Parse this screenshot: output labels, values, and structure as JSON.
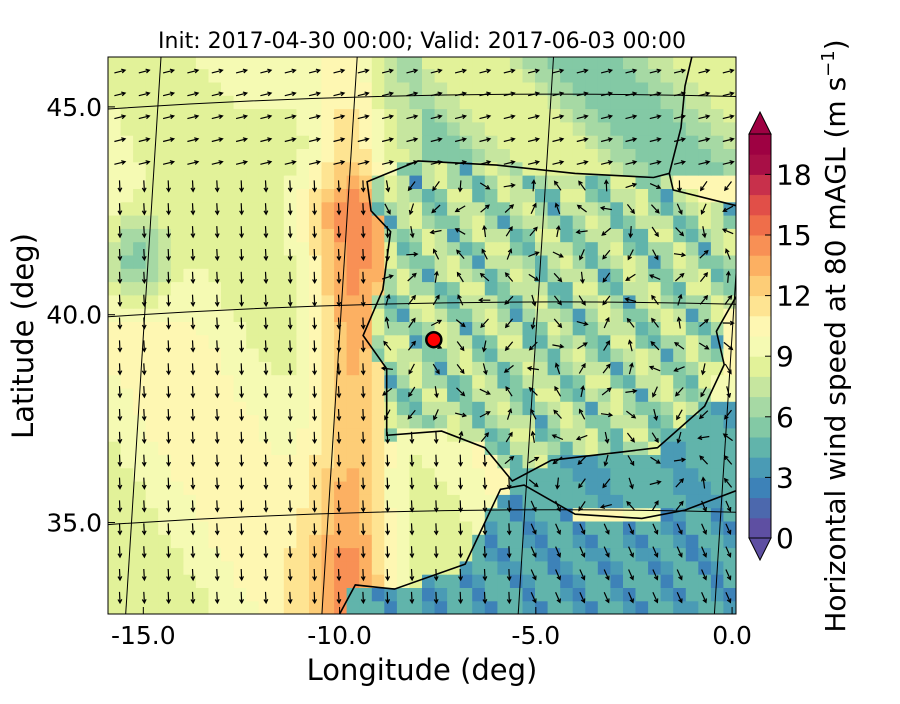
{
  "chart_data": {
    "type": "heatmap",
    "title": "Init: 2017-04-30 00:00; Valid: 2017-06-03 00:00",
    "xlabel": "Longitude (deg)",
    "ylabel": "Latitude (deg)",
    "xlim": [
      -15.9,
      0.1
    ],
    "ylim": [
      32.8,
      46.2
    ],
    "x_ticks": [
      {
        "value": -15,
        "label": "-15.0"
      },
      {
        "value": -10,
        "label": "-10.0"
      },
      {
        "value": -5,
        "label": "-5.0"
      },
      {
        "value": 0,
        "label": "0.0"
      }
    ],
    "y_ticks": [
      {
        "value": 35,
        "label": "35.0"
      },
      {
        "value": 40,
        "label": "40.0"
      },
      {
        "value": 45,
        "label": "45.0"
      }
    ],
    "grid": true,
    "colorbar": {
      "label": "Horizontal wind speed at 80 mAGL (m s",
      "label_exp": "−1",
      "label_end": ")",
      "min": 0,
      "max": 20,
      "ticks": [
        "0",
        "3",
        "6",
        "9",
        "12",
        "15",
        "18"
      ],
      "extend": "both",
      "colors": [
        "#5e4fa2",
        "#4c68ad",
        "#3d82b8",
        "#4a9bb5",
        "#61b4ab",
        "#83c9a5",
        "#a6d9a4",
        "#c6e69f",
        "#e2f299",
        "#f5fab3",
        "#fef7b2",
        "#fee492",
        "#fdcd77",
        "#fcb062",
        "#f89055",
        "#ef6e4a",
        "#e14f48",
        "#c8304b",
        "#a80f46",
        "#9e0142"
      ]
    },
    "marker": {
      "lon": -7.6,
      "lat": 39.4,
      "color": "#ff0000"
    }
  }
}
